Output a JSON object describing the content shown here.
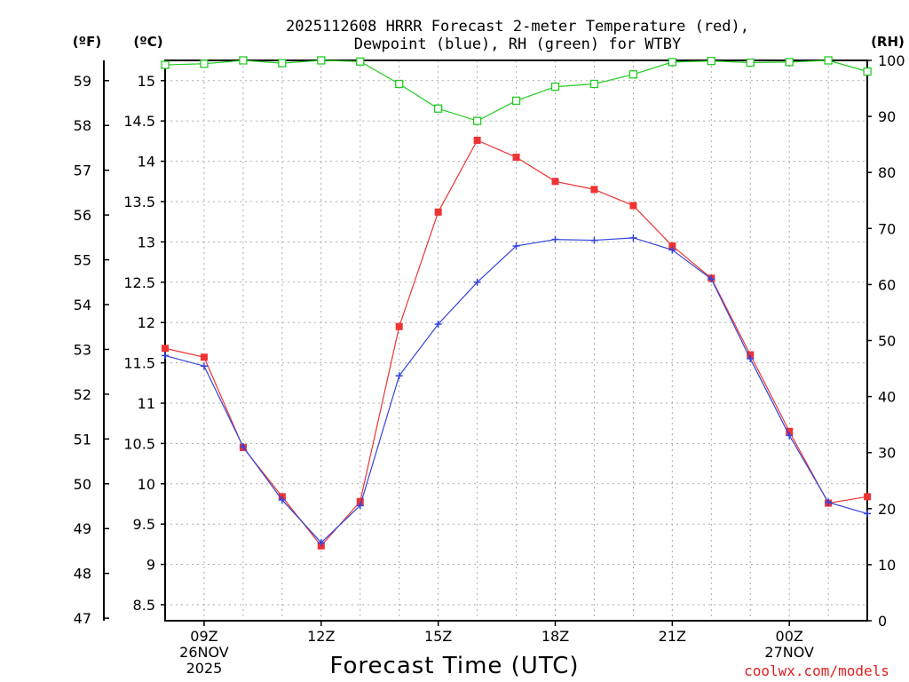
{
  "chart_data": {
    "type": "line",
    "title_line1": "2025112608 HRRR Forecast 2-meter Temperature (red),",
    "title_line2": "Dewpoint (blue), RH (green) for WTBY",
    "xlabel": "Forecast Time (UTC)",
    "credit": "coolwx.com/models",
    "unit_left_f": "(ºF)",
    "unit_left_c": "(ºC)",
    "unit_right": "(RH)",
    "x_hours": [
      8,
      9,
      10,
      11,
      12,
      13,
      14,
      15,
      16,
      17,
      18,
      19,
      20,
      21,
      22,
      23,
      24,
      25,
      26
    ],
    "x_ticks": [
      {
        "hour": 9,
        "lines": [
          "09Z",
          "26NOV",
          "2025"
        ]
      },
      {
        "hour": 12,
        "lines": [
          "12Z"
        ]
      },
      {
        "hour": 15,
        "lines": [
          "15Z"
        ]
      },
      {
        "hour": 18,
        "lines": [
          "18Z"
        ]
      },
      {
        "hour": 21,
        "lines": [
          "21Z"
        ]
      },
      {
        "hour": 24,
        "lines": [
          "00Z",
          "27NOV"
        ]
      }
    ],
    "ylim_c": [
      8.3,
      15.25
    ],
    "yticks_c": [
      "8.5",
      "9",
      "9.5",
      "10",
      "10.5",
      "11",
      "11.5",
      "12",
      "12.5",
      "13",
      "13.5",
      "14",
      "14.5",
      "15"
    ],
    "yticks_f": [
      "47",
      "48",
      "49",
      "50",
      "51",
      "52",
      "53",
      "54",
      "55",
      "56",
      "57",
      "58",
      "59"
    ],
    "ylim_rh": [
      0,
      100
    ],
    "yticks_rh": [
      "0",
      "10",
      "20",
      "30",
      "40",
      "50",
      "60",
      "70",
      "80",
      "90",
      "100"
    ],
    "series": [
      {
        "name": "Temperature",
        "color": "#ee3333",
        "marker": "square",
        "values": [
          11.68,
          11.57,
          10.45,
          9.84,
          9.23,
          9.78,
          11.95,
          13.37,
          14.26,
          14.05,
          13.75,
          13.65,
          13.45,
          12.95,
          12.55,
          11.6,
          10.65,
          9.76,
          9.84
        ]
      },
      {
        "name": "Dewpoint",
        "color": "#3344dd",
        "marker": "plus",
        "values": [
          11.59,
          11.46,
          10.46,
          9.8,
          9.27,
          9.73,
          11.34,
          11.98,
          12.5,
          12.95,
          13.03,
          13.02,
          13.05,
          12.9,
          12.54,
          11.55,
          10.6,
          9.77,
          9.63
        ]
      },
      {
        "name": "RH",
        "color": "#22cc22",
        "marker": "open-square",
        "axis": "rh",
        "values": [
          99.2,
          99.4,
          100,
          99.5,
          100,
          99.8,
          95.8,
          91.4,
          89.2,
          92.8,
          95.3,
          95.8,
          97.5,
          99.7,
          99.9,
          99.6,
          99.7,
          100,
          98.0
        ]
      }
    ]
  }
}
